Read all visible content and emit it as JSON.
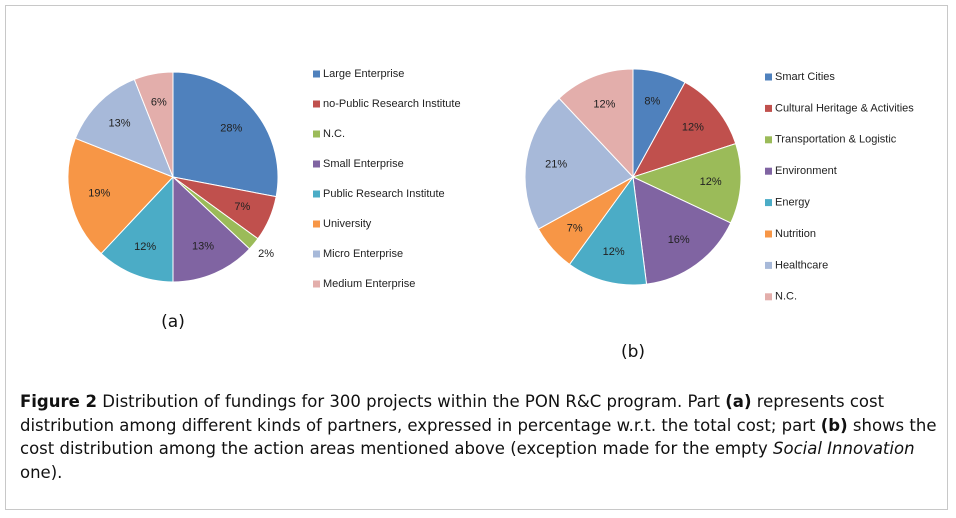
{
  "chart_data": [
    {
      "type": "pie",
      "title": "(a)",
      "categories": [
        "Large Enterprise",
        "no-Public Research Institute",
        "N.C.",
        "Small Enterprise",
        "Public Research Institute",
        "University",
        "Micro Enterprise",
        "Medium Enterprise"
      ],
      "values": [
        28,
        7,
        2,
        13,
        12,
        19,
        13,
        6
      ],
      "value_labels": [
        "28%",
        "7%",
        "2%",
        "13%",
        "12%",
        "19%",
        "13%",
        "6%"
      ],
      "colors": [
        "#4f81bd",
        "#c0504d",
        "#9bbb59",
        "#8064a2",
        "#4bacc6",
        "#f79646",
        "#a7b9d9",
        "#e3aeab"
      ],
      "legend": "right"
    },
    {
      "type": "pie",
      "title": "(b)",
      "categories": [
        "Smart Cities",
        "Cultural Heritage & Activities",
        "Transportation & Logistic",
        "Environment",
        "Energy",
        "Nutrition",
        "Healthcare",
        "N.C."
      ],
      "values": [
        8,
        12,
        12,
        16,
        12,
        7,
        21,
        12
      ],
      "value_labels": [
        "8%",
        "12%",
        "12%",
        "16%",
        "12%",
        "7%",
        "21%",
        "12%"
      ],
      "colors": [
        "#4f81bd",
        "#c0504d",
        "#9bbb59",
        "#8064a2",
        "#4bacc6",
        "#f79646",
        "#a7b9d9",
        "#e3aeab"
      ],
      "legend": "right"
    }
  ],
  "caption": {
    "parts": [
      {
        "text": "Figure 2"
      },
      {
        "text": " Distribution of fundings for 300 projects within the PON R&C program. Part "
      },
      {
        "text": "(a)"
      },
      {
        "text": " represents cost distribution among different kinds of partners, expressed in percentage w.r.t. the total cost; part "
      },
      {
        "text": "(b)"
      },
      {
        "text": " shows the cost distribution among the action areas mentioned above (exception made for the empty "
      },
      {
        "text": "Social Innovation"
      },
      {
        "text": " one)."
      }
    ]
  }
}
